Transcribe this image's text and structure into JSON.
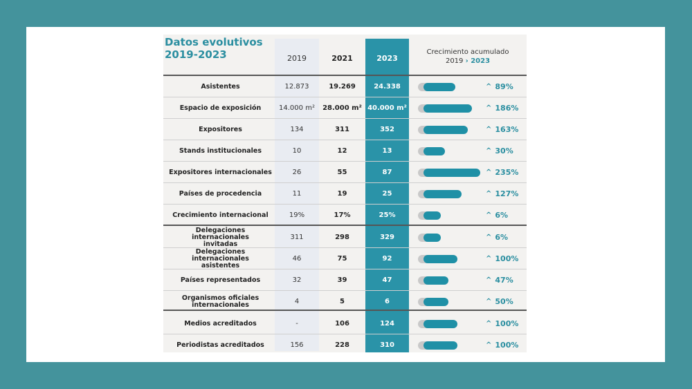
{
  "title": [
    "Datos evolutivos",
    "2019-2023"
  ],
  "headers": {
    "y2019": "2019",
    "y2021": "2021",
    "y2023": "2023",
    "growth_line1": "Crecimiento acumulado",
    "growth_line2_a": "2019 ",
    "growth_arrow": "›",
    "growth_line2_b": " 2023"
  },
  "colors": {
    "accent": "#2a93a8",
    "background": "#44939c"
  },
  "rows": [
    {
      "label": [
        "Asistentes"
      ],
      "v2019": "12.873",
      "v2021": "19.269",
      "v2023": "24.338",
      "growth": "89%",
      "growth_value": 89
    },
    {
      "label": [
        "Espacio de exposición"
      ],
      "v2019": "14.000 m²",
      "v2021": "28.000 m²",
      "v2023": "40.000 m²",
      "growth": "186%",
      "growth_value": 186
    },
    {
      "label": [
        "Expositores"
      ],
      "v2019": "134",
      "v2021": "311",
      "v2023": "352",
      "growth": "163%",
      "growth_value": 163
    },
    {
      "label": [
        "Stands institucionales"
      ],
      "v2019": "10",
      "v2021": "12",
      "v2023": "13",
      "growth": "30%",
      "growth_value": 30
    },
    {
      "label": [
        "Expositores internacionales"
      ],
      "v2019": "26",
      "v2021": "55",
      "v2023": "87",
      "growth": "235%",
      "growth_value": 235
    },
    {
      "label": [
        "Países de procedencia"
      ],
      "v2019": "11",
      "v2021": "19",
      "v2023": "25",
      "growth": "127%",
      "growth_value": 127
    },
    {
      "label": [
        "Crecimiento internacional"
      ],
      "v2019": "19%",
      "v2021": "17%",
      "v2023": "25%",
      "growth": "6%",
      "growth_value": 6
    },
    {
      "label": [
        "Delegaciones internacionales",
        "invitadas"
      ],
      "v2019": "311",
      "v2021": "298",
      "v2023": "329",
      "growth": "6%",
      "growth_value": 6
    },
    {
      "label": [
        "Delegaciones internacionales",
        "asistentes"
      ],
      "v2019": "46",
      "v2021": "75",
      "v2023": "92",
      "growth": "100%",
      "growth_value": 100
    },
    {
      "label": [
        "Países representados"
      ],
      "v2019": "32",
      "v2021": "39",
      "v2023": "47",
      "growth": "47%",
      "growth_value": 47
    },
    {
      "label": [
        "Organismos oficiales",
        "internacionales"
      ],
      "v2019": "4",
      "v2021": "5",
      "v2023": "6",
      "growth": "50%",
      "growth_value": 50
    },
    {
      "label": [
        "Medios acreditados"
      ],
      "v2019": "-",
      "v2021": "106",
      "v2023": "124",
      "growth": "100%",
      "growth_value": 100
    },
    {
      "label": [
        "Periodistas acreditados"
      ],
      "v2019": "156",
      "v2021": "228",
      "v2023": "310",
      "growth": "100%",
      "growth_value": 100
    }
  ]
}
